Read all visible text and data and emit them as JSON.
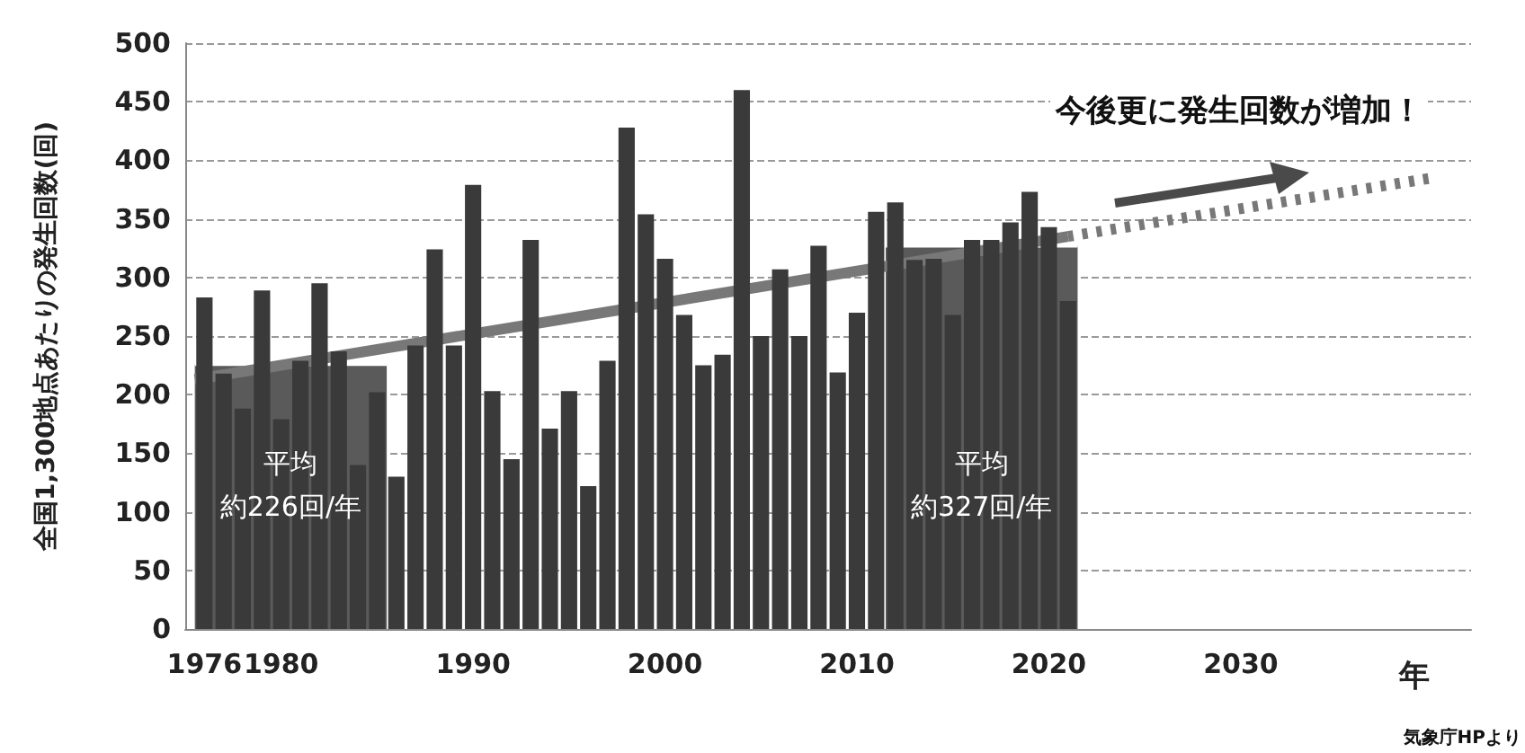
{
  "chart_data": {
    "type": "bar",
    "ylabel": "全国1,300地点あたりの発生回数(回)",
    "xlabel": "年",
    "x": [
      1976,
      1977,
      1978,
      1979,
      1980,
      1981,
      1982,
      1983,
      1984,
      1985,
      1986,
      1987,
      1988,
      1989,
      1990,
      1991,
      1992,
      1993,
      1994,
      1995,
      1996,
      1997,
      1998,
      1999,
      2000,
      2001,
      2002,
      2003,
      2004,
      2005,
      2006,
      2007,
      2008,
      2009,
      2010,
      2011,
      2012,
      2013,
      2014,
      2015,
      2016,
      2017,
      2018,
      2019,
      2020,
      2021
    ],
    "series": [
      {
        "color": "#3a3a3a",
        "values": [
          283,
          218,
          188,
          289,
          179,
          229,
          295,
          237,
          140,
          202,
          130,
          242,
          324,
          242,
          379,
          203,
          145,
          332,
          171,
          203,
          122,
          229,
          428,
          354,
          316,
          268,
          225,
          234,
          460,
          250,
          307,
          250,
          327,
          219,
          270,
          356,
          364,
          315,
          316,
          268,
          332,
          332,
          347,
          373,
          343,
          280
        ]
      },
      {
        "type": "area",
        "color": "#5a5a5a",
        "x": [
          1975.5,
          1985.5
        ],
        "values": [
          226,
          226
        ]
      },
      {
        "type": "area",
        "color": "#5a5a5a",
        "x": [
          2011.5,
          2021.5
        ],
        "values": [
          327,
          327
        ]
      },
      {
        "type": "line",
        "color": "#787878",
        "line_style": "solid",
        "x": [
          1975.5,
          2021
        ],
        "values": [
          213,
          335
        ]
      },
      {
        "type": "line",
        "color": "#787878",
        "line_style": "dotted",
        "x": [
          2021,
          2040
        ],
        "values": [
          335,
          385
        ]
      }
    ],
    "xlim": [
      1975,
      2042
    ],
    "xticks": [
      1976,
      1980,
      1990,
      2000,
      2010,
      2020,
      2030
    ],
    "ylim": [
      0,
      500
    ],
    "yticks": [
      0,
      50,
      100,
      150,
      200,
      250,
      300,
      350,
      400,
      450,
      500
    ],
    "grid": "y",
    "annotations": [
      "平均",
      "約226回/年",
      "平均",
      "約327回/年",
      "今後更に発生回数が増加！",
      "気象庁HPより"
    ]
  }
}
